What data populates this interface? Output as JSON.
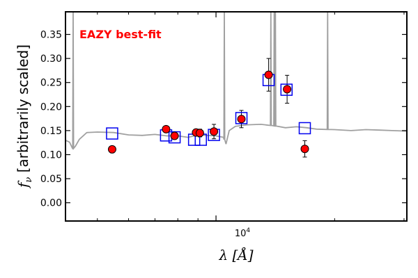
{
  "chart_data": {
    "type": "scatter",
    "annotation": "EAZY best-fit",
    "annotation_color": "#ff0000",
    "xlabel_symbol": "λ",
    "xlabel_unit": "[Å]",
    "ylabel_symbol": "f",
    "ylabel_sub": "ν",
    "ylabel_text": "[arbitrarily scaled]",
    "xscale": "log",
    "xlim": [
      4150,
      30500
    ],
    "ylim": [
      -0.038,
      0.397
    ],
    "yticks": [
      0.0,
      0.05,
      0.1,
      0.15,
      0.2,
      0.25,
      0.3,
      0.35
    ],
    "ytick_labels": [
      "0.00",
      "0.05",
      "0.10",
      "0.15",
      "0.20",
      "0.25",
      "0.30",
      "0.35"
    ],
    "xtick_major": 10000,
    "xtick_label_base": "10",
    "xtick_label_exp": "4",
    "xticks_minor": [
      5000,
      6000,
      7000,
      8000,
      9000,
      20000,
      30000
    ],
    "colors": {
      "observed_fill": "#ff0000",
      "observed_edge": "#000000",
      "model_box": "#0000ee",
      "sed": "#a0a0a0"
    },
    "observed_points": [
      {
        "x": 5450,
        "y": 0.111,
        "yerr": 0.007
      },
      {
        "x": 7470,
        "y": 0.153,
        "yerr": 0.004
      },
      {
        "x": 7850,
        "y": 0.139,
        "yerr": 0.007
      },
      {
        "x": 8900,
        "y": 0.146,
        "yerr": 0.006
      },
      {
        "x": 9100,
        "y": 0.145,
        "yerr": 0.008
      },
      {
        "x": 9880,
        "y": 0.148,
        "yerr": 0.015
      },
      {
        "x": 11600,
        "y": 0.174,
        "yerr": 0.018
      },
      {
        "x": 13600,
        "y": 0.266,
        "yerr": 0.034
      },
      {
        "x": 15150,
        "y": 0.236,
        "yerr": 0.029
      },
      {
        "x": 16800,
        "y": 0.112,
        "yerr": 0.017
      }
    ],
    "model_points": [
      {
        "x": 5450,
        "y": 0.144
      },
      {
        "x": 7470,
        "y": 0.14
      },
      {
        "x": 7850,
        "y": 0.136
      },
      {
        "x": 8800,
        "y": 0.131
      },
      {
        "x": 9150,
        "y": 0.131
      },
      {
        "x": 9880,
        "y": 0.141
      },
      {
        "x": 11600,
        "y": 0.176
      },
      {
        "x": 13600,
        "y": 0.255
      },
      {
        "x": 15100,
        "y": 0.235
      },
      {
        "x": 16800,
        "y": 0.155
      }
    ],
    "sed_continuum": [
      [
        4150,
        0.13
      ],
      [
        4250,
        0.126
      ],
      [
        4330,
        0.112
      ],
      [
        4400,
        0.118
      ],
      [
        4500,
        0.132
      ],
      [
        4700,
        0.146
      ],
      [
        5000,
        0.147
      ],
      [
        5500,
        0.146
      ],
      [
        6000,
        0.141
      ],
      [
        6500,
        0.14
      ],
      [
        7000,
        0.142
      ],
      [
        7500,
        0.139
      ],
      [
        8000,
        0.139
      ],
      [
        8500,
        0.136
      ],
      [
        9000,
        0.141
      ],
      [
        9500,
        0.14
      ],
      [
        10000,
        0.139
      ],
      [
        10450,
        0.136
      ],
      [
        10600,
        0.122
      ],
      [
        10800,
        0.15
      ],
      [
        11200,
        0.159
      ],
      [
        12000,
        0.162
      ],
      [
        13000,
        0.163
      ],
      [
        14000,
        0.16
      ],
      [
        15000,
        0.156
      ],
      [
        16000,
        0.158
      ],
      [
        17000,
        0.156
      ],
      [
        18000,
        0.153
      ],
      [
        20000,
        0.152
      ],
      [
        22000,
        0.15
      ],
      [
        24000,
        0.152
      ],
      [
        26000,
        0.151
      ],
      [
        28000,
        0.15
      ],
      [
        30500,
        0.149
      ]
    ],
    "sed_emission_lines": [
      {
        "x": 4340,
        "peak": 0.397
      },
      {
        "x": 10500,
        "peak": 0.397
      },
      {
        "x": 13780,
        "peak": 0.397
      },
      {
        "x": 14050,
        "peak": 0.397
      },
      {
        "x": 14150,
        "peak": 0.397
      },
      {
        "x": 19200,
        "peak": 0.397
      }
    ]
  }
}
